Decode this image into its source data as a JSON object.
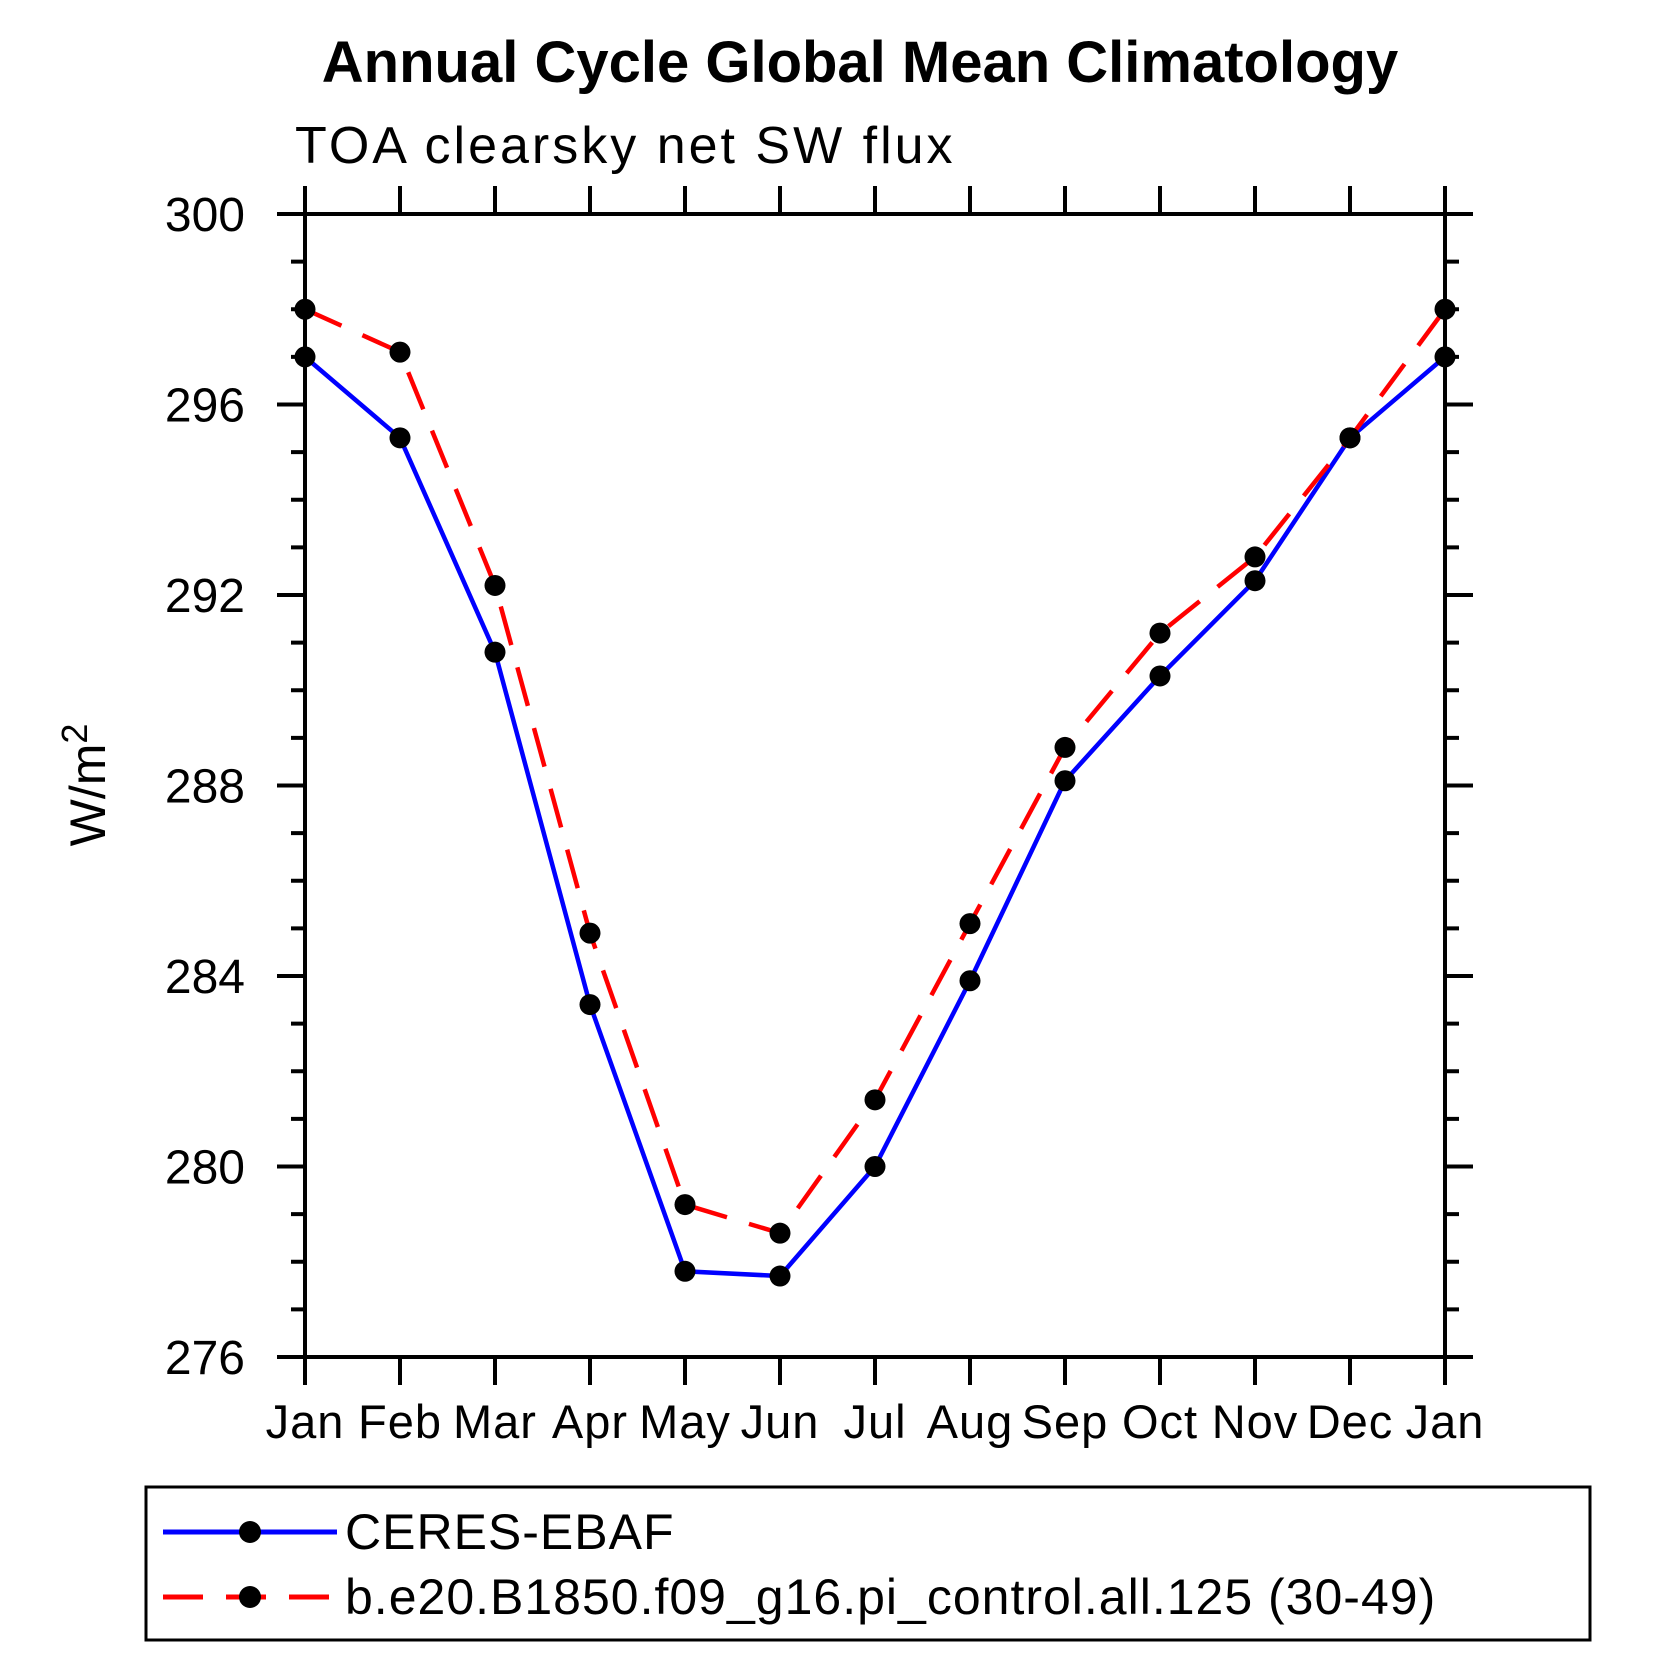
{
  "header": {
    "title": "Annual Cycle Global Mean Climatology",
    "subtitle": "TOA clearsky net SW flux"
  },
  "chart_data": {
    "type": "line",
    "title": "Annual Cycle Global Mean Climatology",
    "subtitle": "TOA clearsky net SW flux",
    "ylabel_base": "W/m",
    "ylabel_exp": "2",
    "xlabel": "",
    "categories": [
      "Jan",
      "Feb",
      "Mar",
      "Apr",
      "May",
      "Jun",
      "Jul",
      "Aug",
      "Sep",
      "Oct",
      "Nov",
      "Dec",
      "Jan"
    ],
    "ylim": [
      276,
      300
    ],
    "ytick_major": [
      276,
      280,
      284,
      288,
      292,
      296,
      300
    ],
    "ytick_minor_step": 1,
    "grid": false,
    "legend_position": "bottom-left-box",
    "series": [
      {
        "name": "CERES-EBAF",
        "color": "#0000ff",
        "line_style": "solid",
        "marker": "circle",
        "marker_color": "#000000",
        "values": [
          297.0,
          295.3,
          290.8,
          283.4,
          277.8,
          277.7,
          280.0,
          283.9,
          288.1,
          290.3,
          292.3,
          295.3,
          297.0
        ]
      },
      {
        "name": "b.e20.B1850.f09_g16.pi_control.all.125 (30-49)",
        "color": "#ff0000",
        "line_style": "dashed",
        "marker": "circle",
        "marker_color": "#000000",
        "values": [
          298.0,
          297.1,
          292.2,
          284.9,
          279.2,
          278.6,
          281.4,
          285.1,
          288.8,
          291.2,
          292.8,
          295.3,
          298.0
        ]
      }
    ]
  }
}
